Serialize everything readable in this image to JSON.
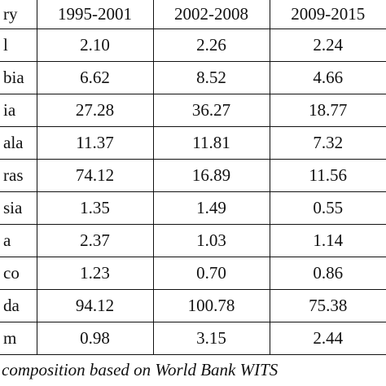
{
  "table": {
    "header": [
      "ry",
      "1995-2001",
      "2002-2008",
      "2009-2015"
    ],
    "rows": [
      [
        "l",
        "2.10",
        "2.26",
        "2.24"
      ],
      [
        "bia",
        "6.62",
        "8.52",
        "4.66"
      ],
      [
        "ia",
        "27.28",
        "36.27",
        "18.77"
      ],
      [
        "ala",
        "11.37",
        "11.81",
        "7.32"
      ],
      [
        "ras",
        "74.12",
        "16.89",
        "11.56"
      ],
      [
        "sia",
        "1.35",
        "1.49",
        "0.55"
      ],
      [
        "a",
        "2.37",
        "1.03",
        "1.14"
      ],
      [
        "co",
        "1.23",
        "0.70",
        "0.86"
      ],
      [
        "da",
        "94.12",
        "100.78",
        "75.38"
      ],
      [
        "m",
        "0.98",
        "3.15",
        "2.44"
      ]
    ],
    "note": "composition based on World Bank WITS"
  }
}
